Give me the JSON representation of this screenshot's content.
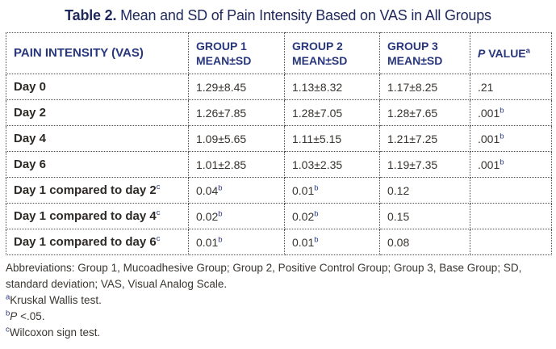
{
  "title": {
    "label": "Table 2.",
    "text": " Mean and SD of Pain Intensity Based on VAS in All Groups"
  },
  "table": {
    "header": {
      "col1": "PAIN INTENSITY (VAS)",
      "groups": [
        {
          "line1": "GROUP 1",
          "line2": "MEAN±SD"
        },
        {
          "line1": "GROUP 2",
          "line2": "MEAN±SD"
        },
        {
          "line1": "GROUP 3",
          "line2": "MEAN±SD"
        }
      ],
      "pvalue": {
        "italic": "P",
        "text": " VALUE",
        "sup": "a"
      }
    },
    "rows": [
      {
        "label": "Day 0",
        "label_sup": "",
        "group1": "1.29±8.45",
        "group1_sup": "",
        "group2": "1.13±8.32",
        "group2_sup": "",
        "group3": "1.17±8.25",
        "group3_sup": "",
        "p": ".21",
        "p_sup": ""
      },
      {
        "label": "Day 2",
        "label_sup": "",
        "group1": "1.26±7.85",
        "group1_sup": "",
        "group2": "1.28±7.05",
        "group2_sup": "",
        "group3": "1.28±7.65",
        "group3_sup": "",
        "p": ".001",
        "p_sup": "b"
      },
      {
        "label": "Day 4",
        "label_sup": "",
        "group1": "1.09±5.65",
        "group1_sup": "",
        "group2": "1.11±5.15",
        "group2_sup": "",
        "group3": "1.21±7.25",
        "group3_sup": "",
        "p": ".001",
        "p_sup": "b"
      },
      {
        "label": "Day 6",
        "label_sup": "",
        "group1": "1.01±2.85",
        "group1_sup": "",
        "group2": "1.03±2.35",
        "group2_sup": "",
        "group3": "1.19±7.35",
        "group3_sup": "",
        "p": ".001",
        "p_sup": "b"
      },
      {
        "label": "Day 1 compared to day 2",
        "label_sup": "c",
        "group1": "0.04",
        "group1_sup": "b",
        "group2": "0.01",
        "group2_sup": "b",
        "group3": "0.12",
        "group3_sup": "",
        "p": "",
        "p_sup": ""
      },
      {
        "label": "Day 1 compared to day 4",
        "label_sup": "c",
        "group1": "0.02",
        "group1_sup": "b",
        "group2": "0.02",
        "group2_sup": "b",
        "group3": "0.15",
        "group3_sup": "",
        "p": "",
        "p_sup": ""
      },
      {
        "label": "Day 1 compared to day 6",
        "label_sup": "c",
        "group1": "0.01",
        "group1_sup": "b",
        "group2": "0.01",
        "group2_sup": "b",
        "group3": "0.08",
        "group3_sup": "",
        "p": "",
        "p_sup": ""
      }
    ]
  },
  "footnotes": {
    "abbreviations": "Abbreviations: Group 1, Mucoadhesive Group; Group 2, Positive Control Group; Group 3, Base Group; SD, standard deviation; VAS, Visual Analog Scale.",
    "notes": [
      {
        "sup": "a",
        "italic": "",
        "text": "Kruskal Wallis test."
      },
      {
        "sup": "b",
        "italic": "P",
        "text": " <.05."
      },
      {
        "sup": "c",
        "italic": "",
        "text": "Wilcoxon sign test."
      }
    ]
  },
  "colors": {
    "header_navy": "#28377d",
    "title_navy": "#20295c",
    "body_text": "#38342f",
    "border": "#4f4f4f",
    "background": "#ffffff"
  }
}
